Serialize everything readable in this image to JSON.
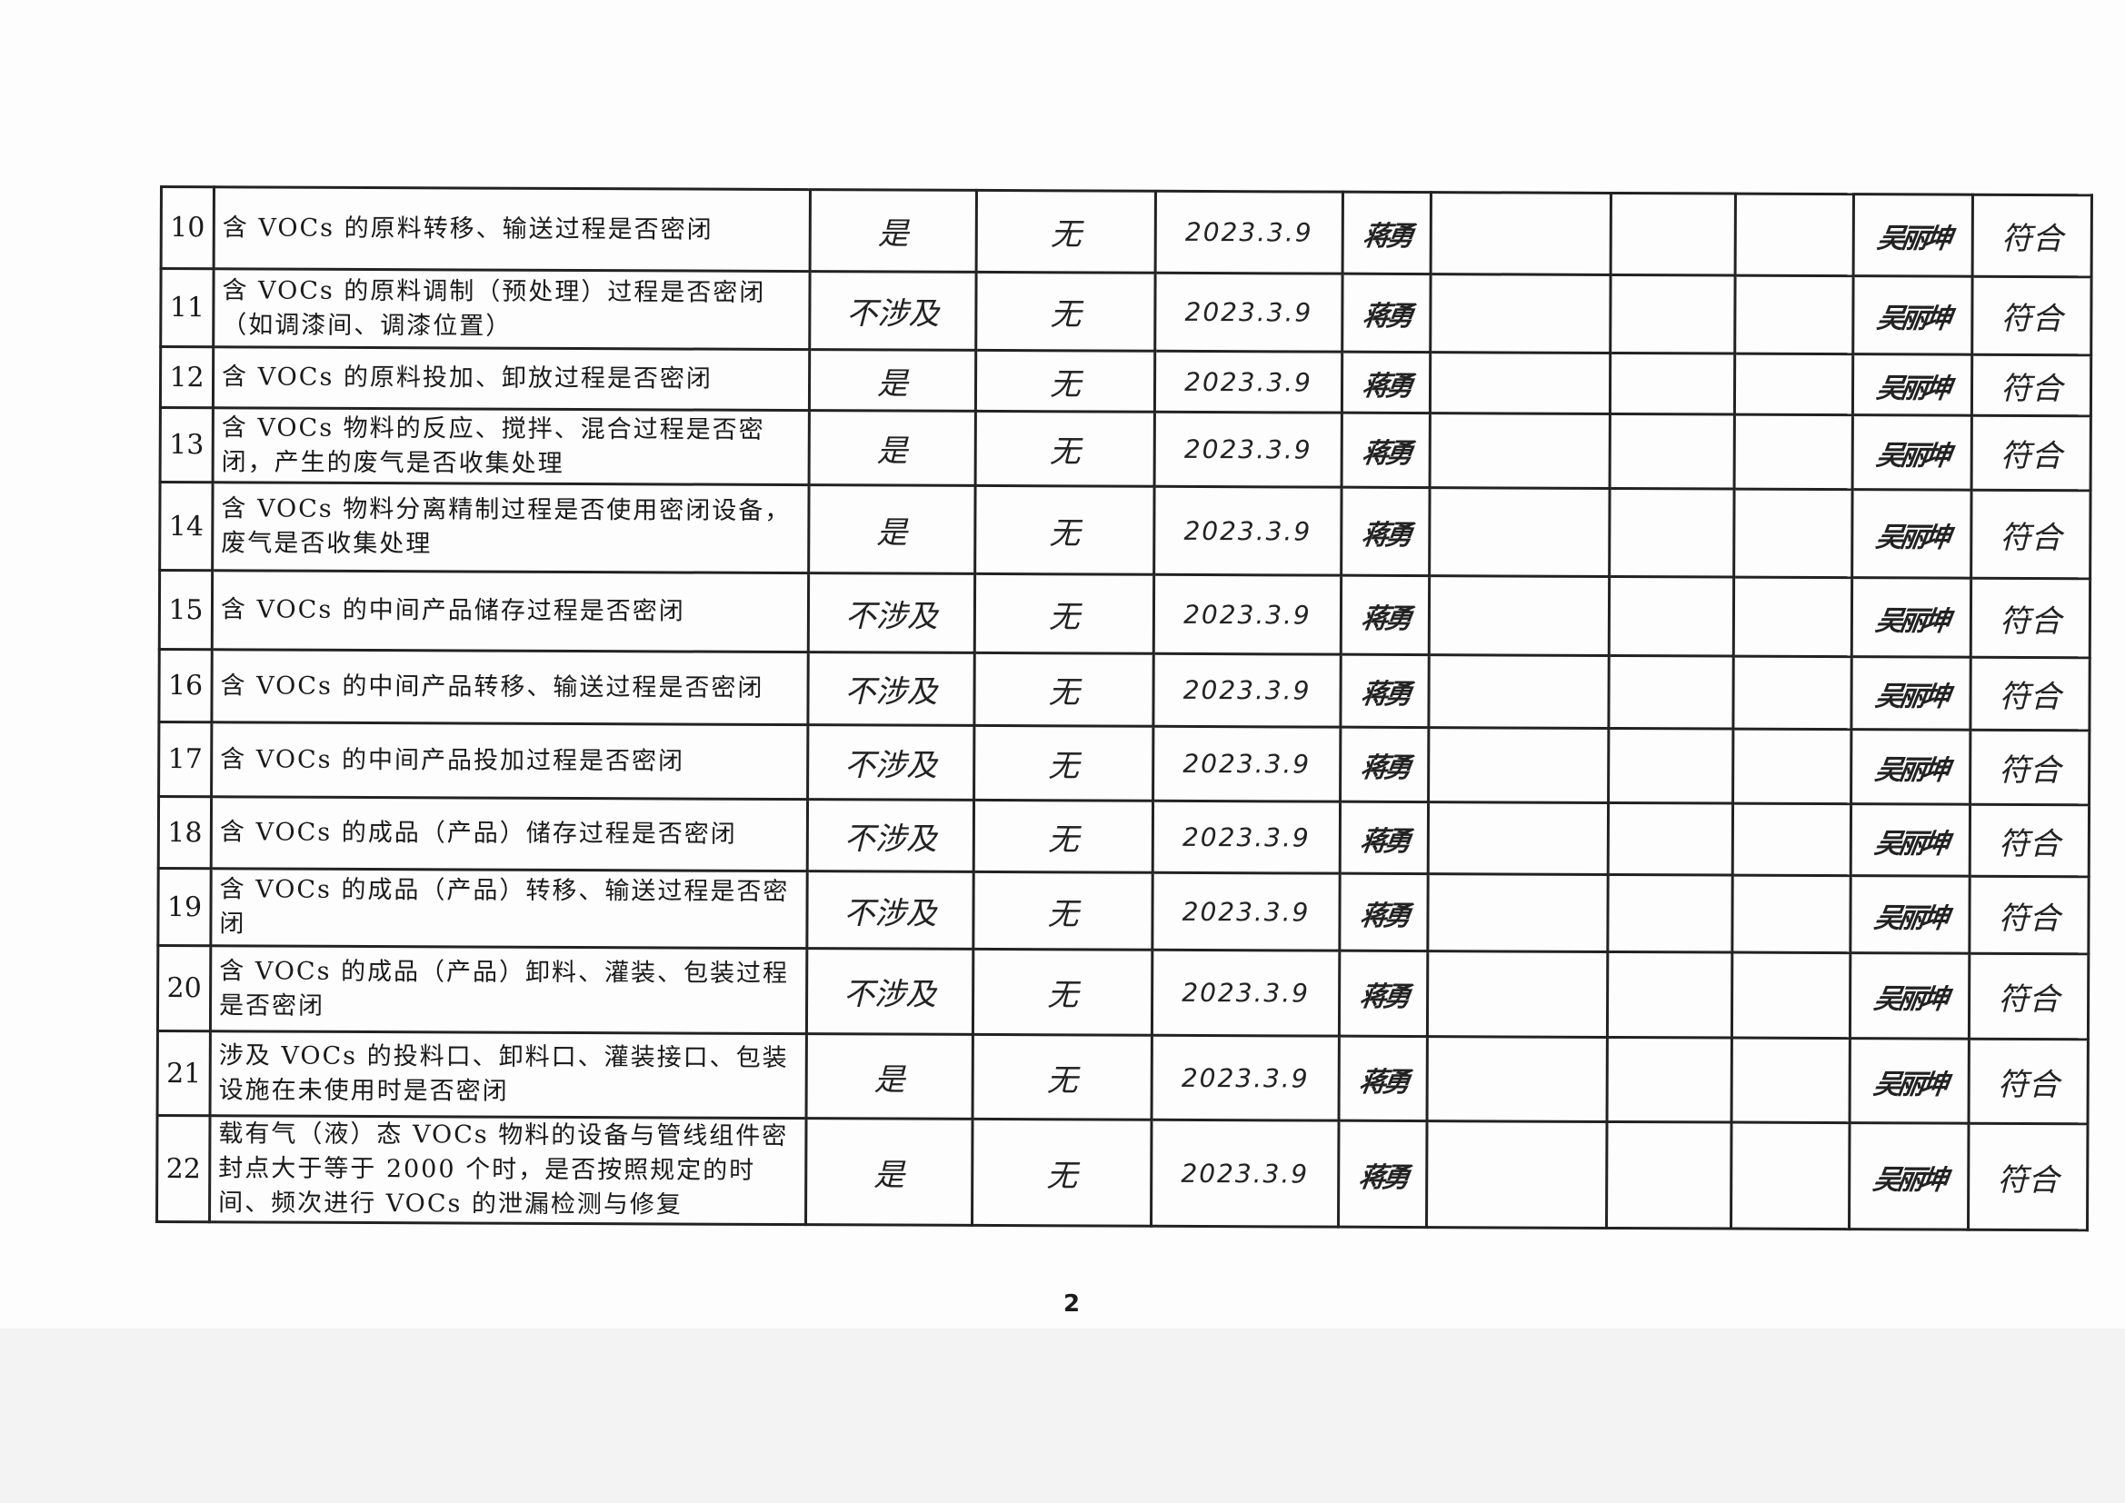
{
  "page_number": "2",
  "rows": [
    {
      "no": "10",
      "item": "含 VOCs 的原料转移、输送过程是否密闭",
      "answer": "是",
      "issue": "无",
      "date": "2023.3.9",
      "inspector": "蒋勇",
      "reviewer": "吴丽坤",
      "result": "符合"
    },
    {
      "no": "11",
      "item": "含 VOCs 的原料调制（预处理）过程是否密闭（如调漆间、调漆位置）",
      "answer": "不涉及",
      "issue": "无",
      "date": "2023.3.9",
      "inspector": "蒋勇",
      "reviewer": "吴丽坤",
      "result": "符合"
    },
    {
      "no": "12",
      "item": "含 VOCs 的原料投加、卸放过程是否密闭",
      "answer": "是",
      "issue": "无",
      "date": "2023.3.9",
      "inspector": "蒋勇",
      "reviewer": "吴丽坤",
      "result": "符合"
    },
    {
      "no": "13",
      "item": "含 VOCs 物料的反应、搅拌、混合过程是否密闭，产生的废气是否收集处理",
      "answer": "是",
      "issue": "无",
      "date": "2023.3.9",
      "inspector": "蒋勇",
      "reviewer": "吴丽坤",
      "result": "符合"
    },
    {
      "no": "14",
      "item": "含 VOCs 物料分离精制过程是否使用密闭设备，废气是否收集处理",
      "answer": "是",
      "issue": "无",
      "date": "2023.3.9",
      "inspector": "蒋勇",
      "reviewer": "吴丽坤",
      "result": "符合"
    },
    {
      "no": "15",
      "item": "含 VOCs 的中间产品储存过程是否密闭",
      "answer": "不涉及",
      "issue": "无",
      "date": "2023.3.9",
      "inspector": "蒋勇",
      "reviewer": "吴丽坤",
      "result": "符合"
    },
    {
      "no": "16",
      "item": "含 VOCs 的中间产品转移、输送过程是否密闭",
      "answer": "不涉及",
      "issue": "无",
      "date": "2023.3.9",
      "inspector": "蒋勇",
      "reviewer": "吴丽坤",
      "result": "符合"
    },
    {
      "no": "17",
      "item": "含 VOCs 的中间产品投加过程是否密闭",
      "answer": "不涉及",
      "issue": "无",
      "date": "2023.3.9",
      "inspector": "蒋勇",
      "reviewer": "吴丽坤",
      "result": "符合"
    },
    {
      "no": "18",
      "item": "含 VOCs 的成品（产品）储存过程是否密闭",
      "answer": "不涉及",
      "issue": "无",
      "date": "2023.3.9",
      "inspector": "蒋勇",
      "reviewer": "吴丽坤",
      "result": "符合"
    },
    {
      "no": "19",
      "item": "含 VOCs 的成品（产品）转移、输送过程是否密闭",
      "answer": "不涉及",
      "issue": "无",
      "date": "2023.3.9",
      "inspector": "蒋勇",
      "reviewer": "吴丽坤",
      "result": "符合"
    },
    {
      "no": "20",
      "item": "含 VOCs 的成品（产品）卸料、灌装、包装过程是否密闭",
      "answer": "不涉及",
      "issue": "无",
      "date": "2023.3.9",
      "inspector": "蒋勇",
      "reviewer": "吴丽坤",
      "result": "符合"
    },
    {
      "no": "21",
      "item": "涉及 VOCs 的投料口、卸料口、灌装接口、包装设施在未使用时是否密闭",
      "answer": "是",
      "issue": "无",
      "date": "2023.3.9",
      "inspector": "蒋勇",
      "reviewer": "吴丽坤",
      "result": "符合"
    },
    {
      "no": "22",
      "item": "载有气（液）态 VOCs 物料的设备与管线组件密封点大于等于 2000 个时，是否按照规定的时间、频次进行 VOCs 的泄漏检测与修复",
      "answer": "是",
      "issue": "无",
      "date": "2023.3.9",
      "inspector": "蒋勇",
      "reviewer": "吴丽坤",
      "result": "符合"
    }
  ]
}
